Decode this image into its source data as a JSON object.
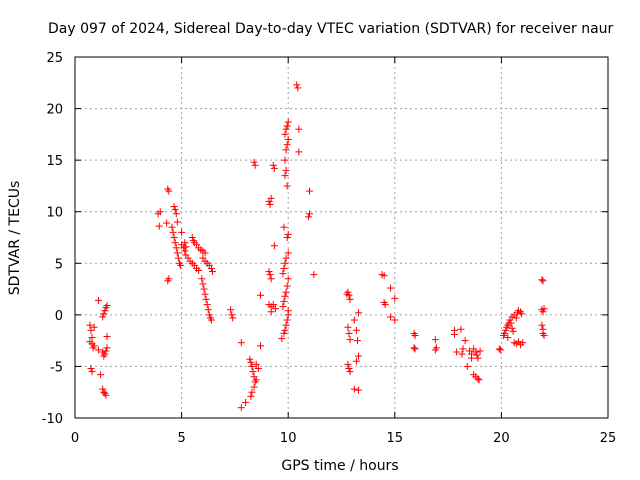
{
  "chart_data": {
    "type": "scatter",
    "title": "Day 097 of 2024, Sidereal Day-to-day VTEC variation (SDTVAR) for receiver naur",
    "xlabel": "GPS time / hours",
    "ylabel": "SDTVAR / TECUs",
    "xlim": [
      0,
      25
    ],
    "ylim": [
      -10,
      25
    ],
    "xticks": [
      "0",
      "5",
      "10",
      "15",
      "20",
      "25"
    ],
    "yticks": [
      "-10",
      "-5",
      "0",
      "5",
      "10",
      "15",
      "20",
      "25"
    ],
    "grid": true,
    "marker": "+",
    "color": "#ff0000",
    "series": [
      {
        "name": "SDTVAR",
        "points": [
          [
            0.7,
            -1.0
          ],
          [
            0.75,
            -1.5
          ],
          [
            0.8,
            -2.2
          ],
          [
            0.8,
            -2.8
          ],
          [
            0.85,
            -3.2
          ],
          [
            0.7,
            -2.6
          ],
          [
            0.75,
            -5.2
          ],
          [
            0.8,
            -5.5
          ],
          [
            0.9,
            -1.2
          ],
          [
            0.9,
            -3.0
          ],
          [
            1.1,
            1.4
          ],
          [
            1.1,
            -3.4
          ],
          [
            1.3,
            -0.2
          ],
          [
            1.35,
            0.1
          ],
          [
            1.4,
            0.4
          ],
          [
            1.45,
            0.7
          ],
          [
            1.5,
            0.9
          ],
          [
            1.3,
            -3.6
          ],
          [
            1.35,
            -4.0
          ],
          [
            1.4,
            -3.8
          ],
          [
            1.45,
            -3.5
          ],
          [
            1.5,
            -3.2
          ],
          [
            1.3,
            -7.2
          ],
          [
            1.35,
            -7.5
          ],
          [
            1.4,
            -7.6
          ],
          [
            1.45,
            -7.8
          ],
          [
            1.5,
            -2.1
          ],
          [
            1.2,
            -5.8
          ],
          [
            3.9,
            9.8
          ],
          [
            4.0,
            10.0
          ],
          [
            3.95,
            8.6
          ],
          [
            4.35,
            12.2
          ],
          [
            4.4,
            12.0
          ],
          [
            4.3,
            8.9
          ],
          [
            4.35,
            3.3
          ],
          [
            4.4,
            3.5
          ],
          [
            4.55,
            8.5
          ],
          [
            4.65,
            10.5
          ],
          [
            4.7,
            10.2
          ],
          [
            4.75,
            9.8
          ],
          [
            4.8,
            9.0
          ],
          [
            4.6,
            8.0
          ],
          [
            4.65,
            7.5
          ],
          [
            4.7,
            7.0
          ],
          [
            4.75,
            6.5
          ],
          [
            4.8,
            6.0
          ],
          [
            4.85,
            5.5
          ],
          [
            4.9,
            5.0
          ],
          [
            4.95,
            4.8
          ],
          [
            5.0,
            6.8
          ],
          [
            5.1,
            6.5
          ],
          [
            5.15,
            6.2
          ],
          [
            5.2,
            5.8
          ],
          [
            5.3,
            5.5
          ],
          [
            5.4,
            5.2
          ],
          [
            5.5,
            5.0
          ],
          [
            5.6,
            4.8
          ],
          [
            5.7,
            4.5
          ],
          [
            5.8,
            4.3
          ],
          [
            5.5,
            7.5
          ],
          [
            5.55,
            7.2
          ],
          [
            5.6,
            7.0
          ],
          [
            5.7,
            6.8
          ],
          [
            5.8,
            6.5
          ],
          [
            5.9,
            6.3
          ],
          [
            6.0,
            6.2
          ],
          [
            6.1,
            6.0
          ],
          [
            6.0,
            5.5
          ],
          [
            6.1,
            5.2
          ],
          [
            6.2,
            5.0
          ],
          [
            6.3,
            4.8
          ],
          [
            6.4,
            4.5
          ],
          [
            6.45,
            4.2
          ],
          [
            5.15,
            7.0
          ],
          [
            5.2,
            6.6
          ],
          [
            5.0,
            8.0
          ],
          [
            6.0,
            3.0
          ],
          [
            6.05,
            2.5
          ],
          [
            6.1,
            2.0
          ],
          [
            6.15,
            1.5
          ],
          [
            6.2,
            1.0
          ],
          [
            6.25,
            0.5
          ],
          [
            6.3,
            0.0
          ],
          [
            6.35,
            -0.3
          ],
          [
            6.4,
            -0.5
          ],
          [
            5.95,
            3.5
          ],
          [
            7.3,
            0.5
          ],
          [
            7.35,
            0.0
          ],
          [
            7.4,
            -0.3
          ],
          [
            7.8,
            -2.7
          ],
          [
            7.8,
            -9.0
          ],
          [
            8.0,
            -8.5
          ],
          [
            8.2,
            -4.3
          ],
          [
            8.25,
            -4.6
          ],
          [
            8.3,
            -5.0
          ],
          [
            8.35,
            -5.5
          ],
          [
            8.4,
            -6.0
          ],
          [
            8.45,
            -6.5
          ],
          [
            8.3,
            -7.5
          ],
          [
            8.25,
            -7.9
          ],
          [
            8.4,
            -7.0
          ],
          [
            8.5,
            -6.3
          ],
          [
            8.5,
            -4.8
          ],
          [
            8.6,
            -5.2
          ],
          [
            8.4,
            14.8
          ],
          [
            8.45,
            14.5
          ],
          [
            8.7,
            -3.0
          ],
          [
            8.7,
            1.9
          ],
          [
            9.1,
            4.2
          ],
          [
            9.15,
            3.9
          ],
          [
            9.2,
            3.5
          ],
          [
            9.1,
            11.0
          ],
          [
            9.15,
            10.7
          ],
          [
            9.2,
            11.3
          ],
          [
            9.3,
            14.5
          ],
          [
            9.35,
            14.2
          ],
          [
            9.35,
            6.7
          ],
          [
            9.1,
            1.0
          ],
          [
            9.2,
            0.8
          ],
          [
            9.3,
            1.0
          ],
          [
            9.4,
            0.6
          ],
          [
            9.2,
            0.3
          ],
          [
            9.7,
            -2.3
          ],
          [
            9.8,
            -1.8
          ],
          [
            9.85,
            -1.5
          ],
          [
            9.9,
            -1.0
          ],
          [
            9.95,
            -0.5
          ],
          [
            10.0,
            0.0
          ],
          [
            10.0,
            0.4
          ],
          [
            9.75,
            0.8
          ],
          [
            9.8,
            1.3
          ],
          [
            9.85,
            1.8
          ],
          [
            9.9,
            2.2
          ],
          [
            9.95,
            2.8
          ],
          [
            10.0,
            3.5
          ],
          [
            9.75,
            4.0
          ],
          [
            9.8,
            4.5
          ],
          [
            9.85,
            5.0
          ],
          [
            9.9,
            5.5
          ],
          [
            10.0,
            6.0
          ],
          [
            9.95,
            7.5
          ],
          [
            10.0,
            7.8
          ],
          [
            9.8,
            8.5
          ],
          [
            9.85,
            13.5
          ],
          [
            9.9,
            14.0
          ],
          [
            9.9,
            16.0
          ],
          [
            9.95,
            16.5
          ],
          [
            10.0,
            17.0
          ],
          [
            9.85,
            17.5
          ],
          [
            9.9,
            18.0
          ],
          [
            9.95,
            18.3
          ],
          [
            10.0,
            18.7
          ],
          [
            9.85,
            15.0
          ],
          [
            9.95,
            12.5
          ],
          [
            10.4,
            22.3
          ],
          [
            10.45,
            22.0
          ],
          [
            10.5,
            18.0
          ],
          [
            10.5,
            15.8
          ],
          [
            11.0,
            12.0
          ],
          [
            11.0,
            9.8
          ],
          [
            10.95,
            9.5
          ],
          [
            11.2,
            3.9
          ],
          [
            12.8,
            2.2
          ],
          [
            12.85,
            1.9
          ],
          [
            12.9,
            1.5
          ],
          [
            12.75,
            2.0
          ],
          [
            12.8,
            -1.2
          ],
          [
            12.85,
            -1.8
          ],
          [
            12.9,
            -2.4
          ],
          [
            12.8,
            -4.8
          ],
          [
            12.85,
            -5.2
          ],
          [
            12.9,
            -5.5
          ],
          [
            13.1,
            -0.5
          ],
          [
            13.2,
            -1.5
          ],
          [
            13.25,
            -2.5
          ],
          [
            13.2,
            -4.5
          ],
          [
            13.3,
            -4.0
          ],
          [
            13.3,
            0.2
          ],
          [
            13.1,
            -7.2
          ],
          [
            13.3,
            -7.3
          ],
          [
            14.4,
            3.9
          ],
          [
            14.5,
            3.8
          ],
          [
            14.5,
            1.2
          ],
          [
            14.55,
            1.0
          ],
          [
            14.8,
            2.6
          ],
          [
            14.8,
            -0.2
          ],
          [
            15.0,
            -0.5
          ],
          [
            15.0,
            1.6
          ],
          [
            15.9,
            -1.8
          ],
          [
            15.95,
            -2.0
          ],
          [
            15.9,
            -3.2
          ],
          [
            15.95,
            -3.3
          ],
          [
            16.9,
            -2.4
          ],
          [
            16.95,
            -3.2
          ],
          [
            16.9,
            -3.4
          ],
          [
            17.8,
            -1.5
          ],
          [
            17.8,
            -1.9
          ],
          [
            17.9,
            -3.6
          ],
          [
            18.1,
            -1.4
          ],
          [
            18.2,
            -3.3
          ],
          [
            18.15,
            -3.8
          ],
          [
            18.3,
            -2.5
          ],
          [
            18.4,
            -5.0
          ],
          [
            18.5,
            -3.5
          ],
          [
            18.6,
            -3.8
          ],
          [
            18.7,
            -3.3
          ],
          [
            18.8,
            -3.6
          ],
          [
            18.85,
            -3.9
          ],
          [
            18.9,
            -4.2
          ],
          [
            18.7,
            -5.8
          ],
          [
            18.8,
            -6.0
          ],
          [
            18.9,
            -6.2
          ],
          [
            18.95,
            -6.3
          ],
          [
            19.0,
            -3.5
          ],
          [
            18.6,
            -4.2
          ],
          [
            19.9,
            -3.3
          ],
          [
            19.95,
            -3.4
          ],
          [
            20.1,
            -2.0
          ],
          [
            20.15,
            -1.8
          ],
          [
            20.2,
            -1.5
          ],
          [
            20.25,
            -1.2
          ],
          [
            20.3,
            -1.0
          ],
          [
            20.35,
            -0.8
          ],
          [
            20.4,
            -0.5
          ],
          [
            20.45,
            -0.8
          ],
          [
            20.5,
            -1.3
          ],
          [
            20.55,
            -1.6
          ],
          [
            20.5,
            -0.2
          ],
          [
            20.6,
            0.0
          ],
          [
            20.7,
            -0.3
          ],
          [
            20.75,
            0.2
          ],
          [
            20.8,
            0.4
          ],
          [
            20.9,
            0.3
          ],
          [
            20.95,
            0.1
          ],
          [
            20.6,
            -2.7
          ],
          [
            20.7,
            -2.8
          ],
          [
            20.8,
            -2.6
          ],
          [
            20.9,
            -2.9
          ],
          [
            21.0,
            -2.7
          ],
          [
            20.3,
            -2.2
          ],
          [
            21.9,
            3.4
          ],
          [
            21.95,
            3.3
          ],
          [
            21.9,
            0.5
          ],
          [
            21.95,
            0.3
          ],
          [
            22.0,
            0.6
          ],
          [
            21.9,
            -1.0
          ],
          [
            21.95,
            -1.4
          ],
          [
            22.0,
            -2.0
          ],
          [
            21.95,
            -1.8
          ]
        ]
      }
    ]
  }
}
